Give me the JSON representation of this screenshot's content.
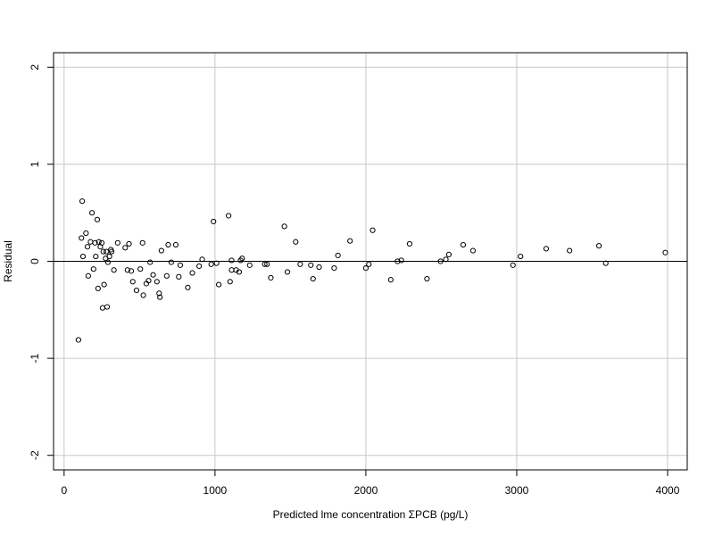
{
  "chart_data": {
    "type": "scatter",
    "title": "",
    "xlabel": "Predicted lme concentration ΣPCB (pg/L)",
    "ylabel": "Residual",
    "xlim": [
      -70,
      4130
    ],
    "ylim": [
      -2.15,
      2.15
    ],
    "xticks": [
      0,
      1000,
      2000,
      3000,
      4000
    ],
    "xtick_labels": [
      "0",
      "1000",
      "2000",
      "3000",
      "4000"
    ],
    "yticks": [
      -2,
      -1,
      0,
      1,
      2
    ],
    "ytick_labels": [
      "-2",
      "-1",
      "0",
      "1",
      "2"
    ],
    "grid": true,
    "reference_line_y": 0,
    "points": [
      [
        95,
        -0.81
      ],
      [
        115,
        0.24
      ],
      [
        120,
        0.62
      ],
      [
        125,
        0.05
      ],
      [
        145,
        0.29
      ],
      [
        155,
        0.15
      ],
      [
        160,
        -0.15
      ],
      [
        175,
        0.2
      ],
      [
        185,
        0.5
      ],
      [
        195,
        -0.08
      ],
      [
        205,
        0.19
      ],
      [
        210,
        0.05
      ],
      [
        220,
        0.43
      ],
      [
        225,
        -0.28
      ],
      [
        230,
        0.2
      ],
      [
        240,
        0.15
      ],
      [
        250,
        0.19
      ],
      [
        255,
        -0.48
      ],
      [
        260,
        0.1
      ],
      [
        265,
        -0.24
      ],
      [
        275,
        0.03
      ],
      [
        280,
        0.1
      ],
      [
        285,
        -0.47
      ],
      [
        290,
        -0.01
      ],
      [
        300,
        0.05
      ],
      [
        310,
        0.12
      ],
      [
        315,
        0.1
      ],
      [
        330,
        -0.09
      ],
      [
        355,
        0.19
      ],
      [
        405,
        0.14
      ],
      [
        420,
        -0.09
      ],
      [
        430,
        0.18
      ],
      [
        445,
        -0.1
      ],
      [
        455,
        -0.21
      ],
      [
        480,
        -0.3
      ],
      [
        505,
        -0.08
      ],
      [
        520,
        0.19
      ],
      [
        525,
        -0.35
      ],
      [
        545,
        -0.23
      ],
      [
        560,
        -0.2
      ],
      [
        570,
        -0.01
      ],
      [
        590,
        -0.14
      ],
      [
        615,
        -0.21
      ],
      [
        630,
        -0.33
      ],
      [
        635,
        -0.37
      ],
      [
        645,
        0.11
      ],
      [
        680,
        -0.15
      ],
      [
        690,
        0.17
      ],
      [
        710,
        -0.01
      ],
      [
        740,
        0.17
      ],
      [
        760,
        -0.16
      ],
      [
        770,
        -0.04
      ],
      [
        820,
        -0.27
      ],
      [
        850,
        -0.12
      ],
      [
        895,
        -0.05
      ],
      [
        915,
        0.02
      ],
      [
        975,
        -0.03
      ],
      [
        990,
        0.41
      ],
      [
        1010,
        -0.02
      ],
      [
        1025,
        -0.24
      ],
      [
        1090,
        0.47
      ],
      [
        1100,
        -0.21
      ],
      [
        1110,
        0.01
      ],
      [
        1110,
        -0.09
      ],
      [
        1140,
        -0.09
      ],
      [
        1160,
        -0.11
      ],
      [
        1170,
        0.01
      ],
      [
        1180,
        0.03
      ],
      [
        1230,
        -0.04
      ],
      [
        1330,
        -0.03
      ],
      [
        1345,
        -0.03
      ],
      [
        1370,
        -0.17
      ],
      [
        1460,
        0.36
      ],
      [
        1480,
        -0.11
      ],
      [
        1535,
        0.2
      ],
      [
        1565,
        -0.03
      ],
      [
        1635,
        -0.04
      ],
      [
        1650,
        -0.18
      ],
      [
        1690,
        -0.06
      ],
      [
        1790,
        -0.07
      ],
      [
        1815,
        0.06
      ],
      [
        1895,
        0.21
      ],
      [
        2000,
        -0.07
      ],
      [
        2020,
        -0.03
      ],
      [
        2045,
        0.32
      ],
      [
        2165,
        -0.19
      ],
      [
        2210,
        0.0
      ],
      [
        2235,
        0.01
      ],
      [
        2290,
        0.18
      ],
      [
        2405,
        -0.18
      ],
      [
        2495,
        0.0
      ],
      [
        2530,
        0.02
      ],
      [
        2550,
        0.07
      ],
      [
        2645,
        0.17
      ],
      [
        2710,
        0.11
      ],
      [
        2975,
        -0.04
      ],
      [
        3025,
        0.05
      ],
      [
        3195,
        0.13
      ],
      [
        3350,
        0.11
      ],
      [
        3545,
        0.16
      ],
      [
        3590,
        -0.02
      ],
      [
        3985,
        0.09
      ]
    ]
  }
}
